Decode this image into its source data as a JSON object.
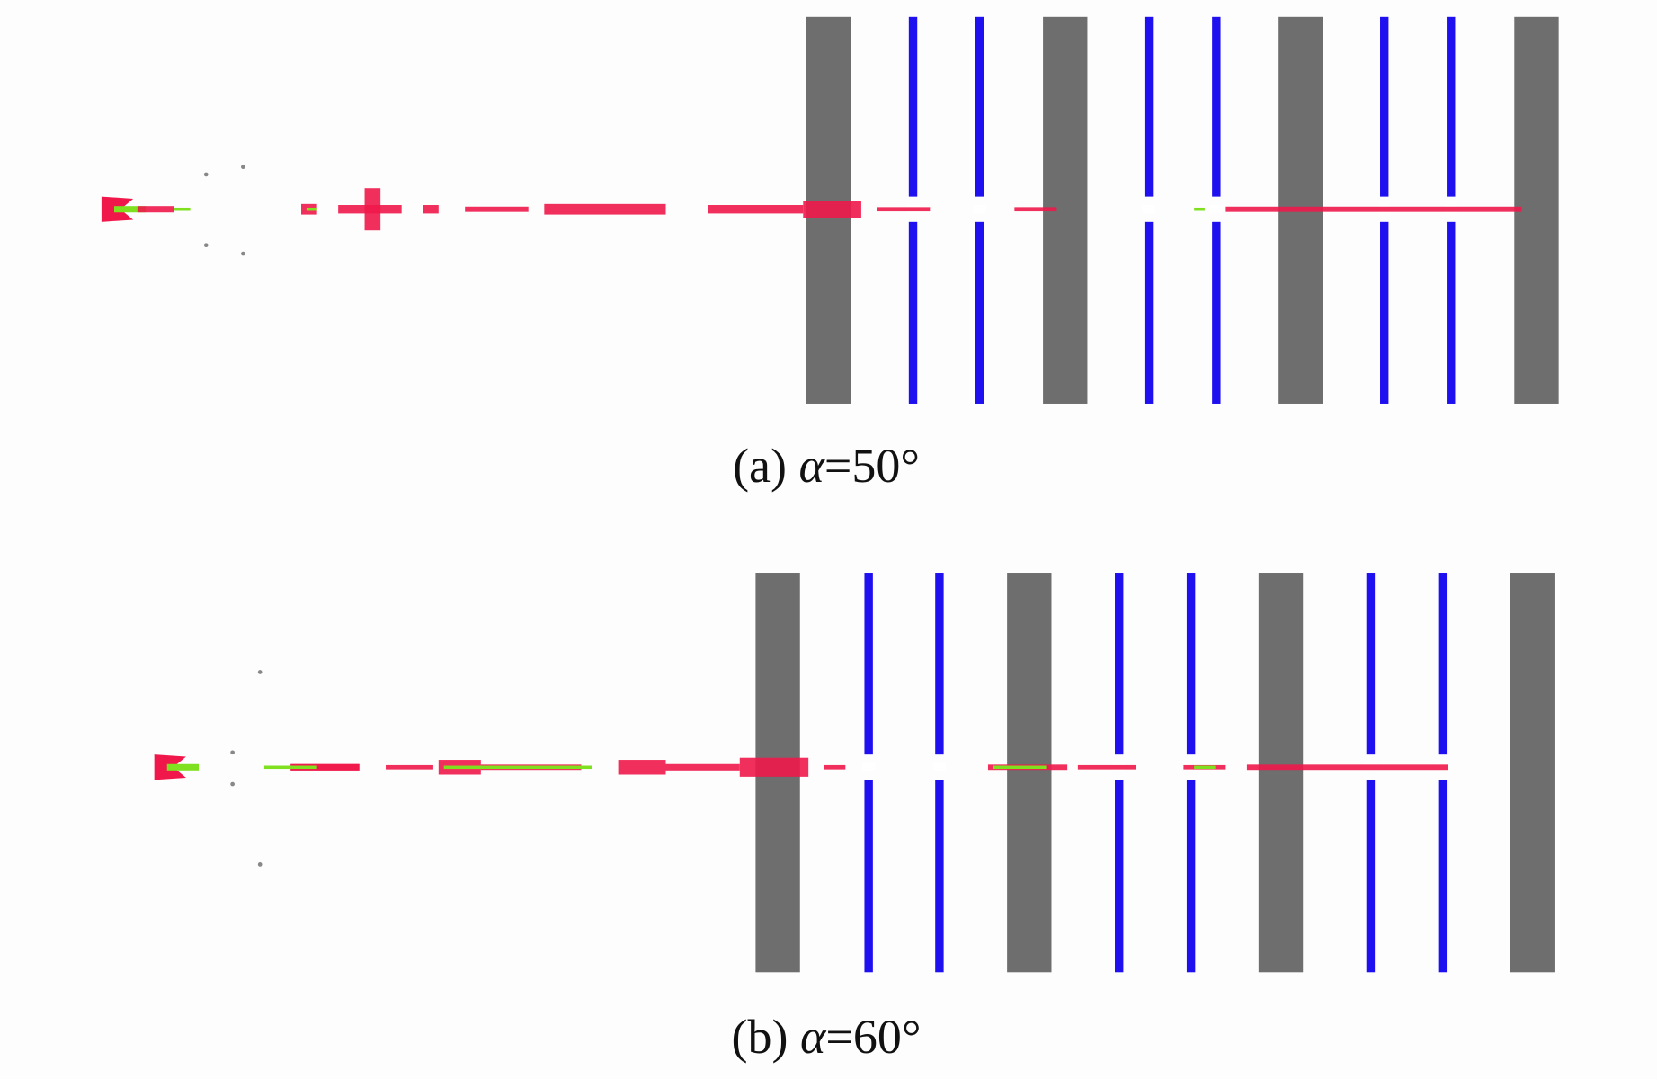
{
  "panels": [
    {
      "label": "(a)",
      "symbol": "α",
      "value": "=50°"
    },
    {
      "label": "(b)",
      "symbol": "α",
      "value": "=60°"
    }
  ],
  "colors": {
    "plate": "#6e6e6e",
    "thin_plate": "#1f10f0",
    "jet": "#f0184a",
    "jet_core": "#7fe020",
    "background": "#fdfdfd"
  }
}
